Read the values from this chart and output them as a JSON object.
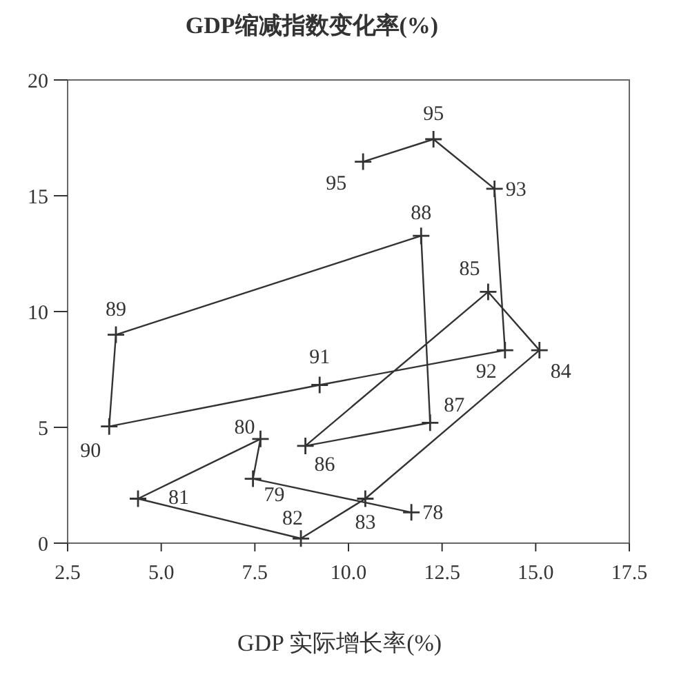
{
  "chart_data": {
    "type": "line",
    "ylabel": "GDP缩减指数变化率(%)",
    "xlabel": "GDP 实际增长率(%)",
    "series": [
      {
        "color": "#333333",
        "x": [
          11.68,
          7.45,
          7.65,
          4.38,
          8.73,
          10.45,
          15.1,
          13.73,
          8.85,
          12.18,
          11.94,
          3.79,
          3.61,
          9.23,
          14.18,
          13.9,
          12.27,
          10.39
        ],
        "values": [
          1.33,
          2.78,
          4.5,
          1.92,
          0.2,
          1.92,
          8.33,
          10.85,
          4.2,
          5.2,
          13.27,
          9.0,
          5.04,
          6.83,
          8.33,
          15.3,
          17.44,
          16.47
        ]
      }
    ],
    "marker": "cross",
    "line_style": "solid",
    "xlim": [
      2.5,
      17.5
    ],
    "xticks": [
      2.5,
      {
        "value": 5,
        "label": "5.0"
      },
      7.5,
      {
        "value": 10,
        "label": "10.0"
      },
      12.5,
      {
        "value": 15,
        "label": "15.0"
      },
      17.5
    ],
    "ylim": [
      0,
      20
    ],
    "yticks": [
      0,
      5,
      10,
      15,
      20
    ],
    "annotations": [
      {
        "text": "78",
        "x": 11.68,
        "y": 1.33
      },
      {
        "text": "79",
        "x": 7.45,
        "y": 2.78
      },
      {
        "text": "80",
        "x": 7.65,
        "y": 4.5
      },
      {
        "text": "81",
        "x": 4.38,
        "y": 1.92
      },
      {
        "text": "82",
        "x": 8.73,
        "y": 0.2
      },
      {
        "text": "83",
        "x": 10.45,
        "y": 1.92
      },
      {
        "text": "84",
        "x": 15.1,
        "y": 8.33
      },
      {
        "text": "85",
        "x": 13.73,
        "y": 10.85
      },
      {
        "text": "86",
        "x": 8.85,
        "y": 4.2
      },
      {
        "text": "87",
        "x": 12.18,
        "y": 5.2
      },
      {
        "text": "88",
        "x": 11.94,
        "y": 13.27
      },
      {
        "text": "89",
        "x": 3.79,
        "y": 9.0
      },
      {
        "text": "90",
        "x": 3.61,
        "y": 5.04
      },
      {
        "text": "91",
        "x": 9.23,
        "y": 6.83
      },
      {
        "text": "92",
        "x": 14.18,
        "y": 8.33
      },
      {
        "text": "93",
        "x": 13.9,
        "y": 15.3
      },
      {
        "text": "95",
        "x": 12.27,
        "y": 17.44
      },
      {
        "text": "95",
        "x": 10.39,
        "y": 16.47
      }
    ]
  }
}
